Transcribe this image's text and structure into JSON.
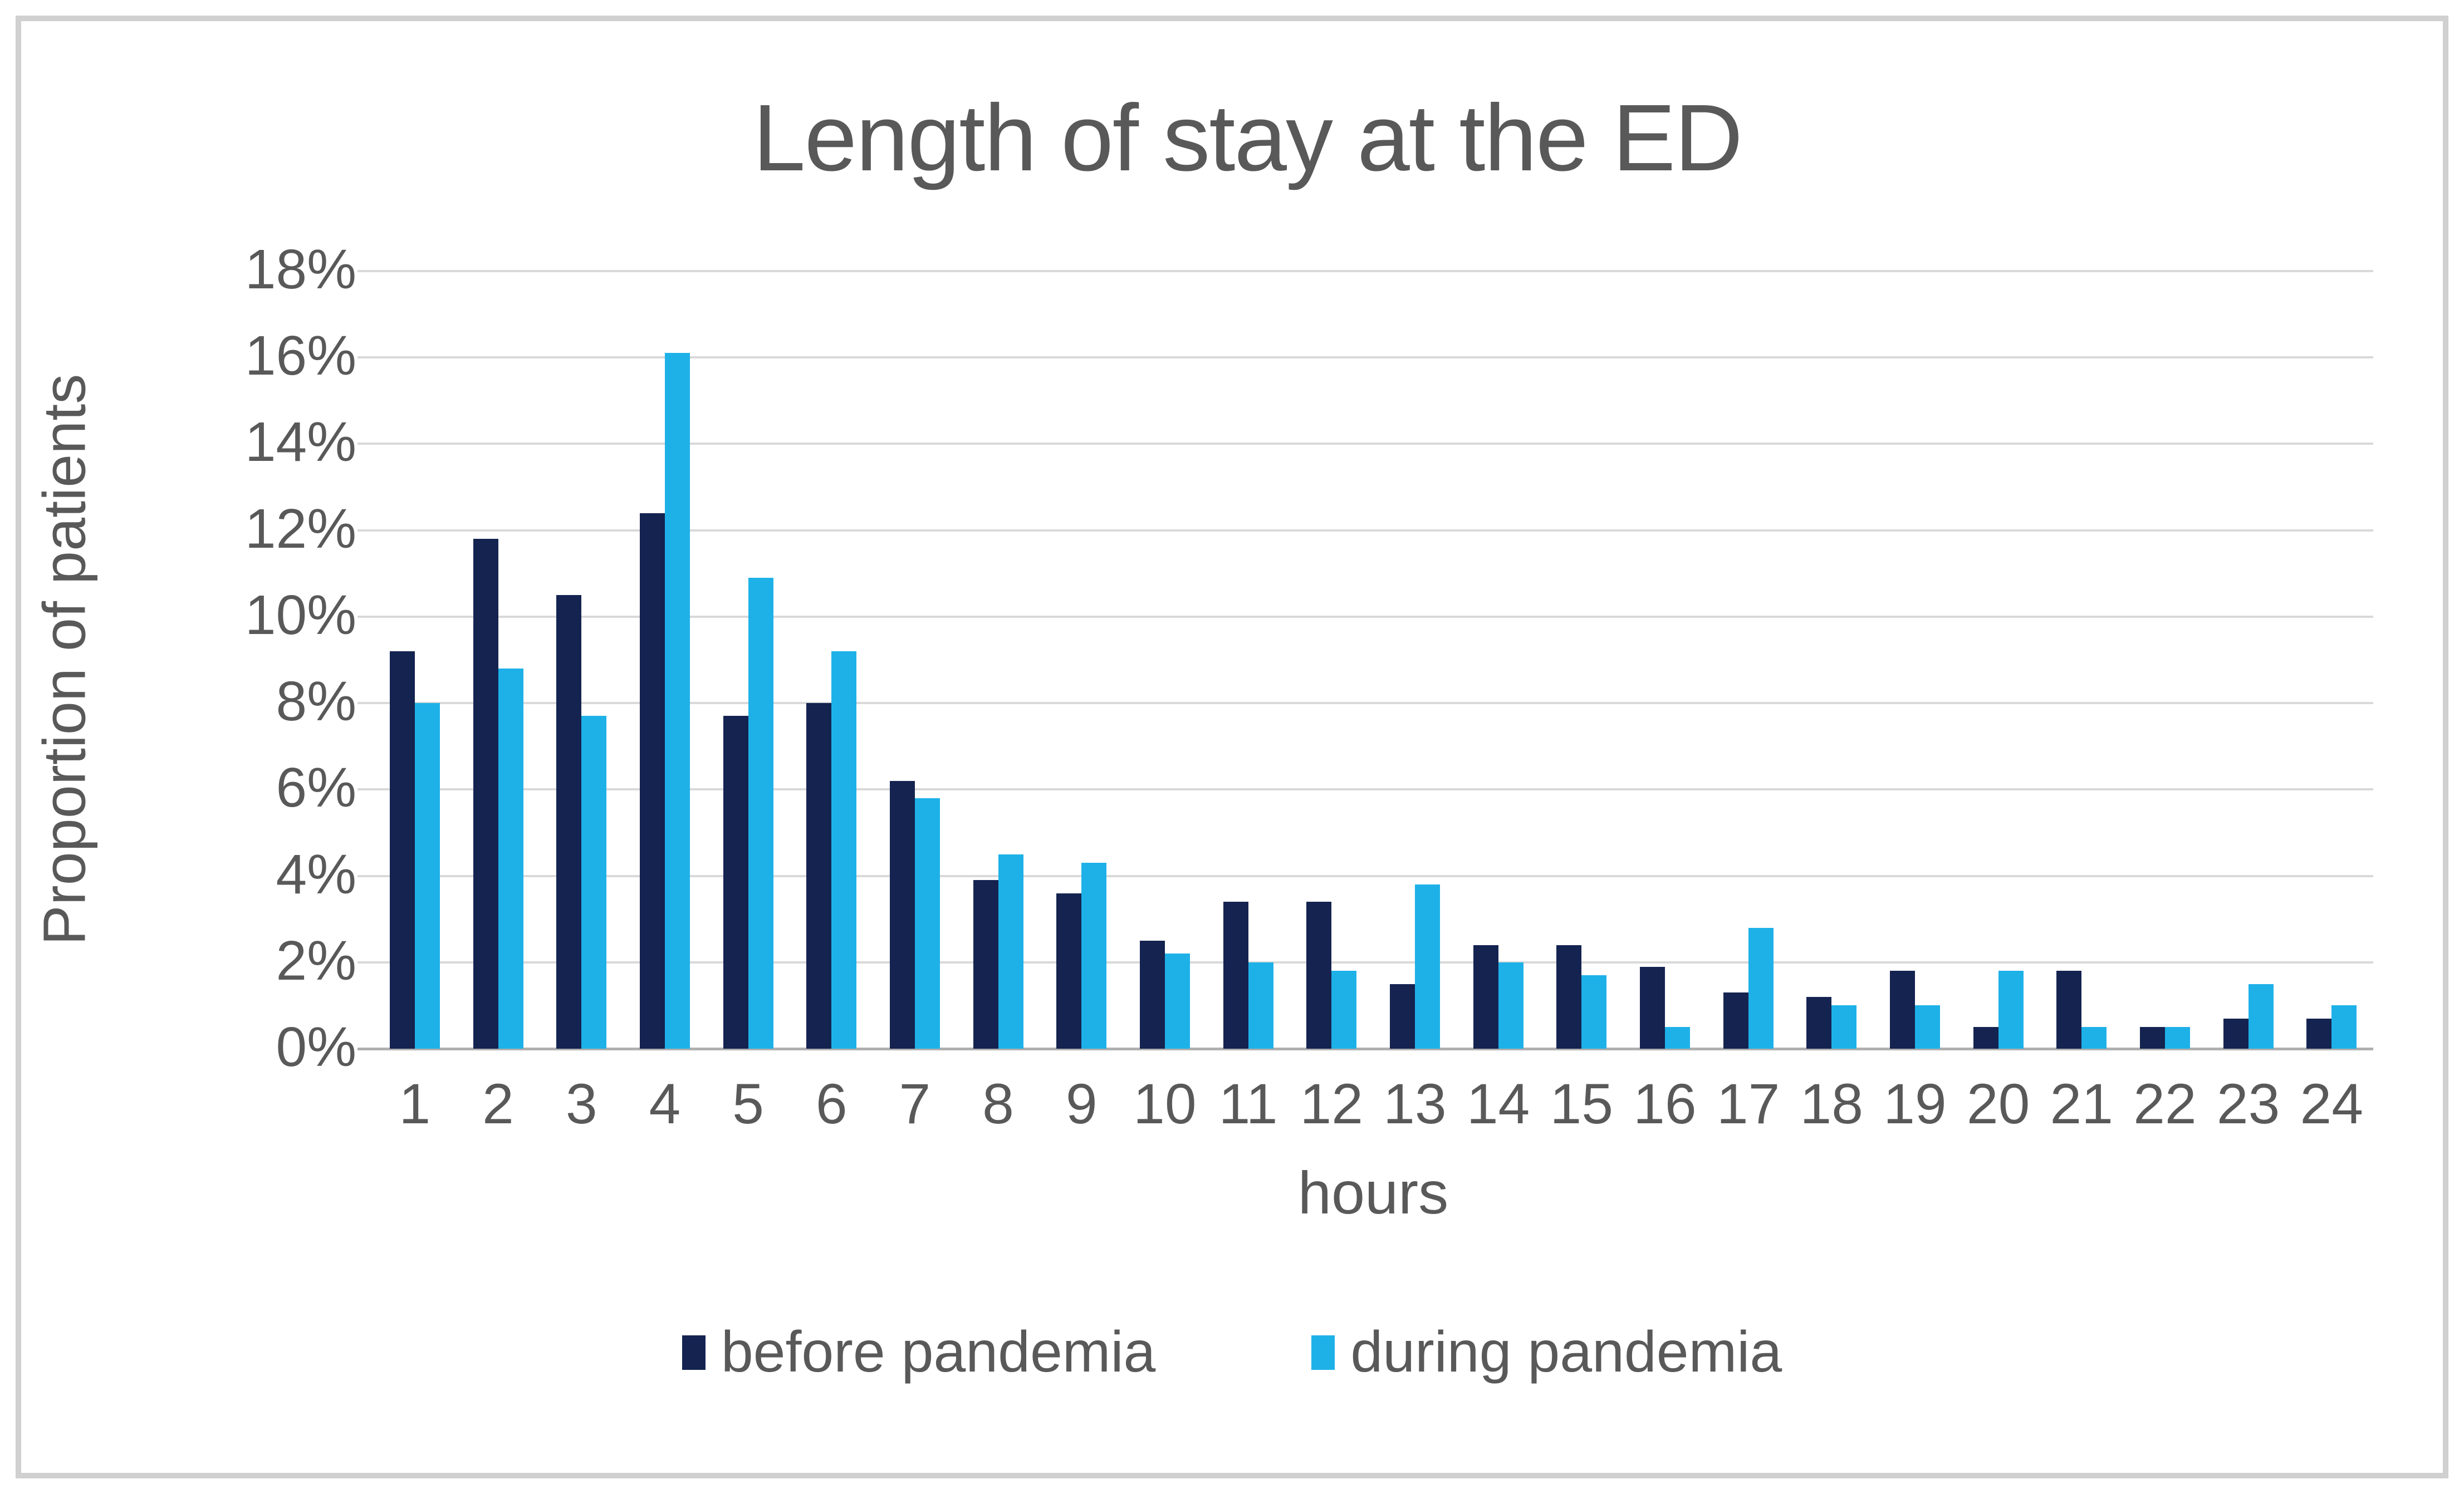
{
  "accent_colors": {
    "before_series": "#142350",
    "during_series": "#1eb1e8",
    "gridline": "#d9d9d9",
    "baseline": "#b0b0b0",
    "text": "#595959",
    "frame_border": "#d0d0d0"
  },
  "chart_data": {
    "type": "bar",
    "title": "Length of stay at the ED",
    "ylabel": "Proportion of patients",
    "xlabel": "hours",
    "categories": [
      "1",
      "2",
      "3",
      "4",
      "5",
      "6",
      "7",
      "8",
      "9",
      "10",
      "11",
      "12",
      "13",
      "14",
      "15",
      "16",
      "17",
      "18",
      "19",
      "20",
      "21",
      "22",
      "23",
      "24"
    ],
    "series": [
      {
        "name": "before pandemia",
        "color": "#142350",
        "values": [
          9.2,
          11.8,
          10.5,
          12.4,
          7.7,
          8.0,
          6.2,
          3.9,
          3.6,
          2.5,
          3.4,
          3.4,
          1.5,
          2.4,
          2.4,
          1.9,
          1.3,
          1.2,
          1.8,
          0.5,
          1.8,
          0.5,
          0.7,
          0.7
        ]
      },
      {
        "name": "during pandemia",
        "color": "#1eb1e8",
        "values": [
          8.0,
          8.8,
          7.7,
          16.1,
          10.9,
          9.2,
          5.8,
          4.5,
          4.3,
          2.2,
          2.0,
          1.8,
          3.8,
          2.0,
          1.7,
          0.5,
          2.8,
          1.0,
          1.0,
          1.8,
          0.5,
          0.5,
          1.5,
          1.0
        ]
      }
    ],
    "y_ticks": [
      "18%",
      "16%",
      "14%",
      "12%",
      "10%",
      "8%",
      "6%",
      "4%",
      "2%",
      "0%"
    ],
    "ylim": [
      0,
      18
    ],
    "grid": true,
    "legend_position": "bottom"
  }
}
